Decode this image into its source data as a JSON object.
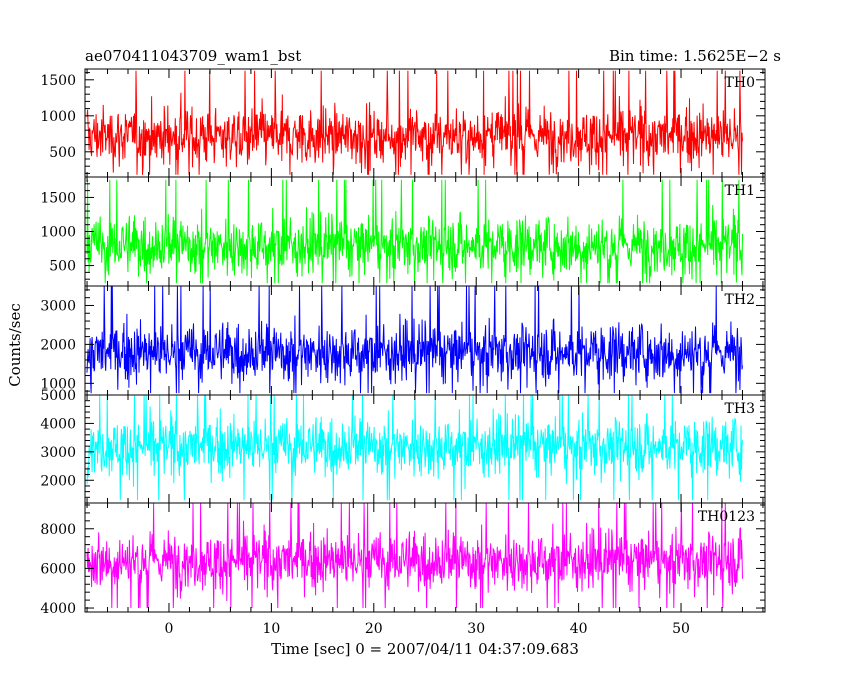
{
  "header": {
    "obs_id": "ae070411043709_wam1_bst",
    "bin_time": "Bin time: 1.5625E−2 s"
  },
  "chart_data": {
    "type": "line",
    "title": "ae070411043709_wam1_bst",
    "subtitle": "Bin time: 1.5625E−2 s",
    "xlabel": "Time [sec] 0 = 2007/04/11 04:37:09.683",
    "ylabel": "Counts/sec",
    "xlim": [
      -8.2,
      58.2
    ],
    "x_ticks": [
      0,
      10,
      20,
      30,
      40,
      50
    ],
    "x_range_data": [
      -8,
      56
    ],
    "grid": false,
    "panels": [
      {
        "name": "TH0",
        "color": "#ff0000",
        "ylim": [
          150,
          1650
        ],
        "yticks": [
          500,
          1000,
          1500
        ],
        "mean": 720,
        "min": 180,
        "max": 1650
      },
      {
        "name": "TH1",
        "color": "#00ff00",
        "ylim": [
          200,
          1800
        ],
        "yticks": [
          500,
          1000,
          1500
        ],
        "mean": 800,
        "min": 240,
        "max": 1800
      },
      {
        "name": "TH2",
        "color": "#0000ff",
        "ylim": [
          700,
          3500
        ],
        "yticks": [
          1000,
          2000,
          3000
        ],
        "mean": 1800,
        "min": 750,
        "max": 3500
      },
      {
        "name": "TH3",
        "color": "#00ffff",
        "ylim": [
          1200,
          5000
        ],
        "yticks": [
          2000,
          3000,
          4000,
          5000
        ],
        "mean": 3200,
        "min": 1300,
        "max": 5000
      },
      {
        "name": "TH0123",
        "color": "#ff00ff",
        "ylim": [
          3800,
          9300
        ],
        "yticks": [
          4000,
          6000,
          8000
        ],
        "mean": 6400,
        "min": 4000,
        "max": 9300
      }
    ]
  }
}
